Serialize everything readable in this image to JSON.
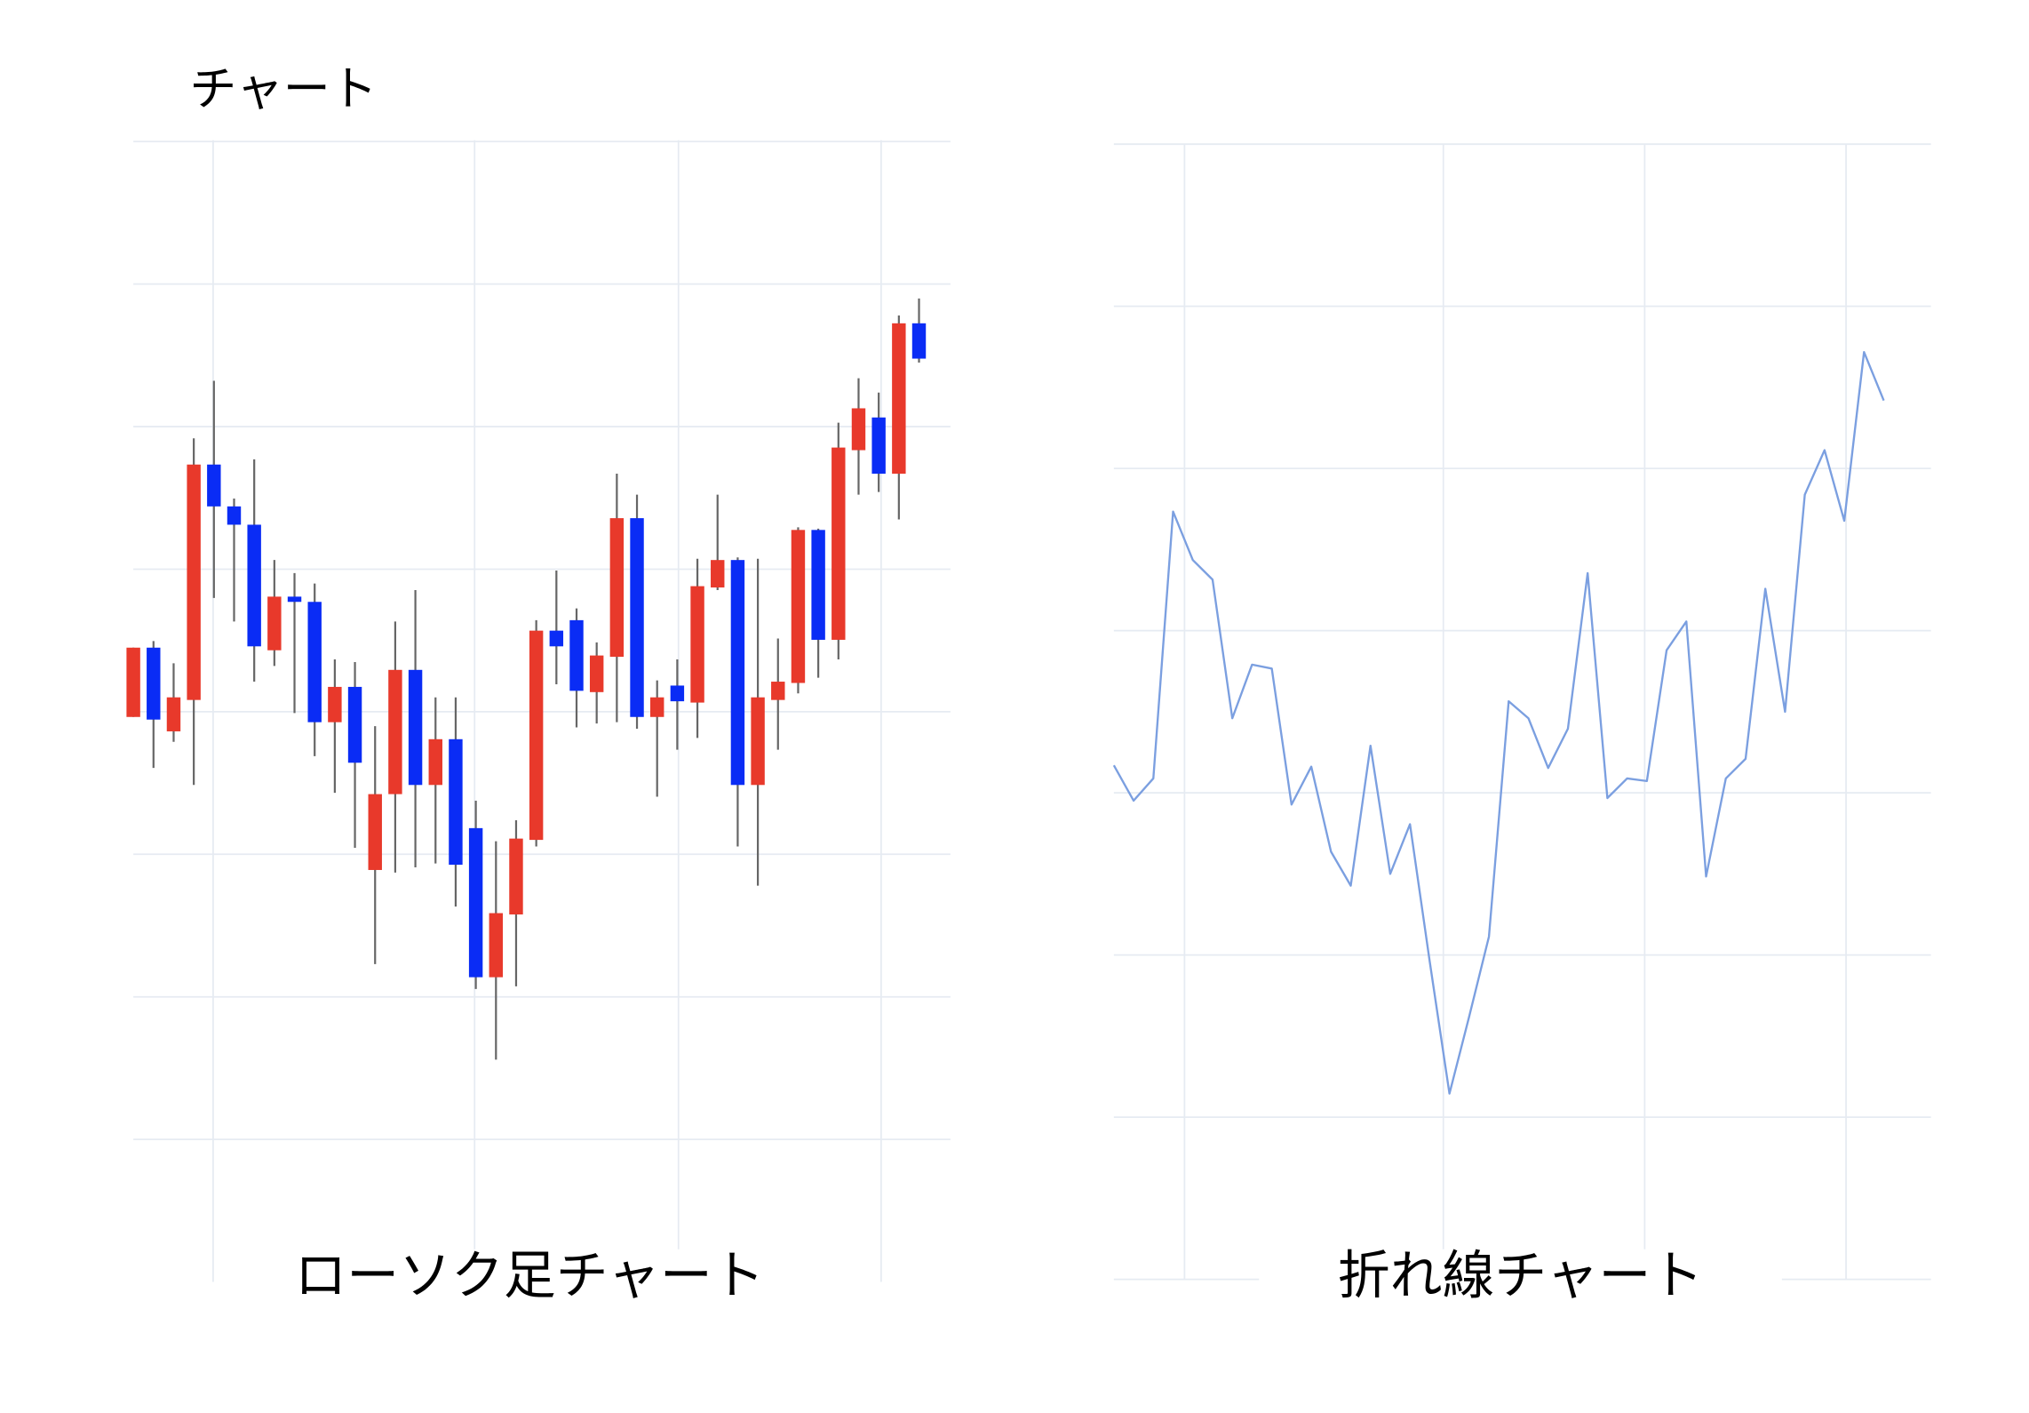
{
  "title": "チャート",
  "chart_data": [
    {
      "type": "candlestick",
      "title": "ローソク足チャート",
      "x": [
        0,
        1,
        2,
        3,
        4,
        5,
        6,
        7,
        8,
        9,
        10,
        11,
        12,
        13,
        14,
        15,
        16,
        17,
        18,
        19,
        20,
        21,
        22,
        23,
        24,
        25,
        26,
        27,
        28,
        29,
        30,
        31,
        32,
        33,
        34,
        35,
        36,
        37,
        38,
        39
      ],
      "open": [
        432,
        485,
        421,
        445,
        625,
        593,
        579,
        483,
        524,
        520,
        428,
        455,
        315,
        373,
        468,
        380,
        415,
        347,
        233,
        281,
        338,
        498,
        506,
        451,
        478,
        584,
        432,
        456,
        443,
        531,
        552,
        380,
        445,
        458,
        575,
        491,
        636,
        661,
        618,
        733
      ],
      "high": [
        485,
        490,
        473,
        645,
        689,
        599,
        629,
        552,
        542,
        534,
        476,
        474,
        425,
        505,
        529,
        447,
        447,
        368,
        337,
        353,
        506,
        544,
        515,
        489,
        618,
        602,
        460,
        476,
        553,
        602,
        554,
        553,
        492,
        577,
        576,
        657,
        691,
        680,
        739,
        752
      ],
      "low": [
        432,
        393,
        413,
        380,
        523,
        505,
        459,
        471,
        435,
        402,
        374,
        332,
        243,
        313,
        317,
        320,
        287,
        224,
        170,
        226,
        333,
        457,
        424,
        427,
        428,
        423,
        371,
        407,
        416,
        529,
        333,
        303,
        407,
        450,
        462,
        476,
        602,
        604,
        583,
        703
      ],
      "close": [
        485,
        430,
        447,
        625,
        593,
        579,
        486,
        524,
        520,
        428,
        455,
        397,
        373,
        468,
        380,
        415,
        319,
        233,
        282,
        339,
        498,
        486,
        452,
        479,
        584,
        432,
        447,
        444,
        532,
        552,
        380,
        447,
        459,
        575,
        491,
        638,
        668,
        618,
        733,
        706
      ],
      "up_color": "#e8392b",
      "down_color": "#0a2cf5",
      "wick_color": "#666666",
      "xlim": [
        0,
        40.56
      ],
      "xticks": [
        3.96,
        16.94,
        27.06,
        37.12
      ],
      "ylim": [
        0,
        873
      ],
      "yticks": [
        109,
        218,
        327,
        436,
        545,
        654,
        763,
        872
      ],
      "grid": true
    },
    {
      "type": "line",
      "title": "折れ線チャート",
      "x": [
        0,
        1,
        2,
        3,
        4,
        5,
        6,
        7,
        8,
        9,
        10,
        11,
        12,
        13,
        14,
        15,
        16,
        17,
        18,
        19,
        20,
        21,
        22,
        23,
        24,
        25,
        26,
        27,
        28,
        29,
        30,
        31,
        32,
        33,
        34,
        35,
        36,
        37,
        38,
        39
      ],
      "series": [
        {
          "color": "#7b9fe0",
          "values": [
            393,
            366,
            383,
            587,
            550,
            535,
            429,
            470,
            467,
            363,
            392,
            327,
            301,
            408,
            310,
            348,
            243,
            142,
            201,
            262,
            442,
            429,
            391,
            421,
            540,
            368,
            383,
            381,
            481,
            503,
            308,
            383,
            398,
            528,
            434,
            600,
            634,
            580,
            709,
            672
          ]
        }
      ],
      "xlim": [
        0,
        41.39
      ],
      "xticks": [
        3.58,
        16.69,
        26.89,
        37.09
      ],
      "ylim": [
        0,
        868
      ],
      "yticks": [
        0,
        124,
        248,
        372,
        496,
        620,
        744,
        868
      ],
      "grid": true
    }
  ]
}
